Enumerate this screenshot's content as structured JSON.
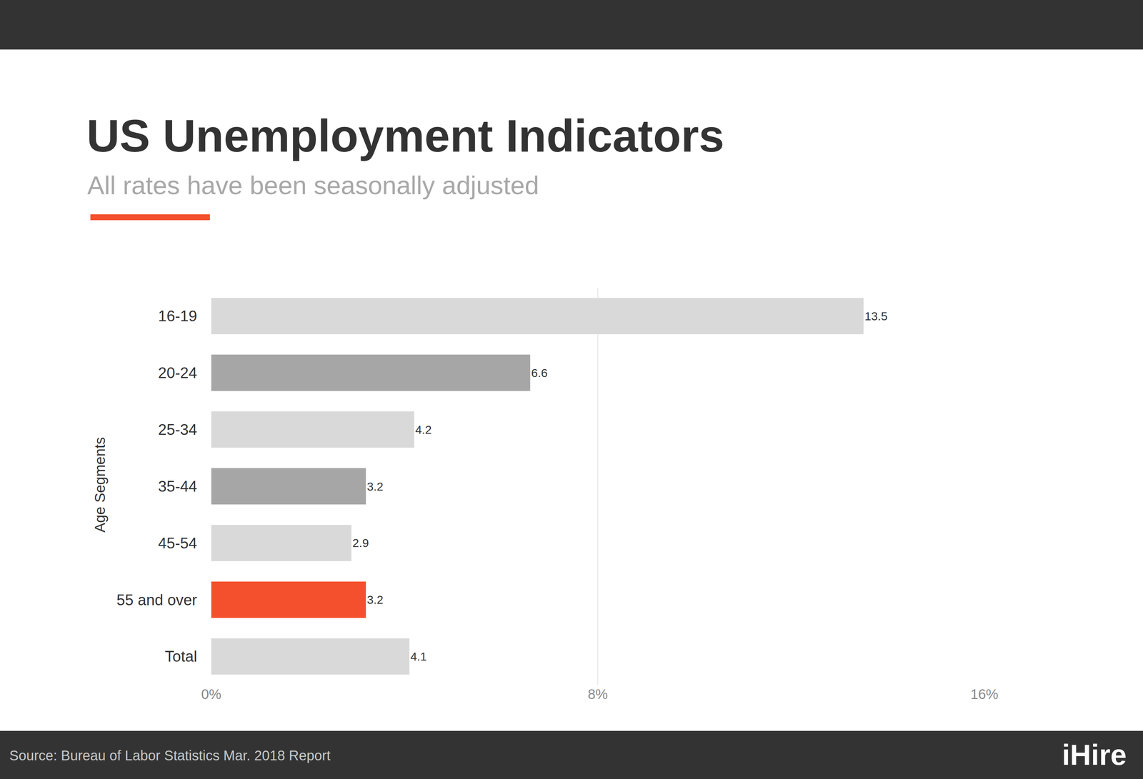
{
  "chart_data": {
    "type": "bar",
    "orientation": "horizontal",
    "title": "US Unemployment Indicators",
    "subtitle": "All rates have been seasonally adjusted",
    "ylabel": "Age Segments",
    "categories": [
      "16-19",
      "20-24",
      "25-34",
      "35-44",
      "45-54",
      "55 and over",
      "Total"
    ],
    "values": [
      13.5,
      6.6,
      4.2,
      3.2,
      2.9,
      3.2,
      4.1
    ],
    "colors": [
      "#d9d9d9",
      "#a6a6a6",
      "#d9d9d9",
      "#a6a6a6",
      "#d9d9d9",
      "#f4502d",
      "#d9d9d9"
    ],
    "xlim": [
      0,
      16
    ],
    "xticks": [
      {
        "value": 0,
        "label": "0%"
      },
      {
        "value": 8,
        "label": "8%"
      },
      {
        "value": 16,
        "label": "16%"
      }
    ],
    "grid": true,
    "data_labels": true,
    "source": "Source: Bureau of Labor Statistics Mar. 2018 Report",
    "logo": "iHire"
  }
}
